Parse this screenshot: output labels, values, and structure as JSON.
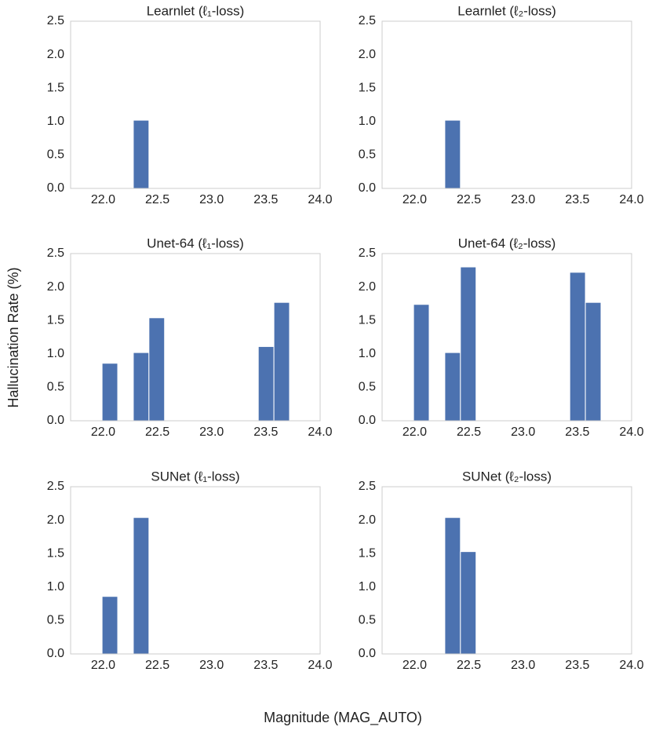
{
  "xlabel": "Magnitude (MAG_AUTO)",
  "ylabel": "Hallucination Rate (%)",
  "chart_data": [
    {
      "type": "histogram",
      "title": "Learnlet (ℓ₁-loss)",
      "color": "#4c72b0",
      "grid": false,
      "bins": [
        21.99,
        22.134,
        22.278,
        22.422,
        22.566,
        22.71,
        22.854,
        22.998,
        23.142,
        23.286,
        23.43,
        23.574,
        23.718
      ],
      "values": [
        0,
        0,
        1.02,
        0,
        0,
        0,
        0,
        0,
        0,
        0,
        0,
        0
      ],
      "xlim": [
        21.7,
        24.0
      ],
      "ylim": [
        0,
        2.5
      ],
      "xticks": [
        {
          "value": 22,
          "label": "22.0"
        },
        22.5,
        {
          "value": 23,
          "label": "23.0"
        },
        23.5,
        {
          "value": 24,
          "label": "24.0"
        }
      ],
      "yticks": [
        {
          "value": 0,
          "label": "0.0"
        },
        0.5,
        {
          "value": 1,
          "label": "1.0"
        },
        1.5,
        {
          "value": 2,
          "label": "2.0"
        },
        2.5
      ]
    },
    {
      "type": "histogram",
      "title": "Learnlet (ℓ₂-loss)",
      "color": "#4c72b0",
      "grid": false,
      "bins": [
        21.99,
        22.134,
        22.278,
        22.422,
        22.566,
        22.71,
        22.854,
        22.998,
        23.142,
        23.286,
        23.43,
        23.574,
        23.718
      ],
      "values": [
        0,
        0,
        1.02,
        0,
        0,
        0,
        0,
        0,
        0,
        0,
        0,
        0
      ],
      "xlim": [
        21.7,
        24.0
      ],
      "ylim": [
        0,
        2.5
      ],
      "xticks": [
        {
          "value": 22,
          "label": "22.0"
        },
        22.5,
        {
          "value": 23,
          "label": "23.0"
        },
        23.5,
        {
          "value": 24,
          "label": "24.0"
        }
      ],
      "yticks": [
        {
          "value": 0,
          "label": "0.0"
        },
        0.5,
        {
          "value": 1,
          "label": "1.0"
        },
        1.5,
        {
          "value": 2,
          "label": "2.0"
        },
        2.5
      ]
    },
    {
      "type": "histogram",
      "title": "Unet-64 (ℓ₁-loss)",
      "color": "#4c72b0",
      "grid": false,
      "bins": [
        21.99,
        22.134,
        22.278,
        22.422,
        22.566,
        22.71,
        22.854,
        22.998,
        23.142,
        23.286,
        23.43,
        23.574,
        23.718
      ],
      "values": [
        0.86,
        0,
        1.02,
        1.54,
        0,
        0,
        0,
        0,
        0,
        0,
        1.11,
        1.77
      ],
      "xlim": [
        21.7,
        24.0
      ],
      "ylim": [
        0,
        2.5
      ],
      "xticks": [
        {
          "value": 22,
          "label": "22.0"
        },
        22.5,
        {
          "value": 23,
          "label": "23.0"
        },
        23.5,
        {
          "value": 24,
          "label": "24.0"
        }
      ],
      "yticks": [
        {
          "value": 0,
          "label": "0.0"
        },
        0.5,
        {
          "value": 1,
          "label": "1.0"
        },
        1.5,
        {
          "value": 2,
          "label": "2.0"
        },
        2.5
      ]
    },
    {
      "type": "histogram",
      "title": "Unet-64 (ℓ₂-loss)",
      "color": "#4c72b0",
      "grid": false,
      "bins": [
        21.99,
        22.134,
        22.278,
        22.422,
        22.566,
        22.71,
        22.854,
        22.998,
        23.142,
        23.286,
        23.43,
        23.574,
        23.718
      ],
      "values": [
        1.74,
        0,
        1.02,
        2.3,
        0,
        0,
        0,
        0,
        0,
        0,
        2.22,
        1.77
      ],
      "xlim": [
        21.7,
        24.0
      ],
      "ylim": [
        0,
        2.5
      ],
      "xticks": [
        {
          "value": 22,
          "label": "22.0"
        },
        22.5,
        {
          "value": 23,
          "label": "23.0"
        },
        23.5,
        {
          "value": 24,
          "label": "24.0"
        }
      ],
      "yticks": [
        {
          "value": 0,
          "label": "0.0"
        },
        0.5,
        {
          "value": 1,
          "label": "1.0"
        },
        1.5,
        {
          "value": 2,
          "label": "2.0"
        },
        2.5
      ]
    },
    {
      "type": "histogram",
      "title": "SUNet (ℓ₁-loss)",
      "color": "#4c72b0",
      "grid": false,
      "bins": [
        21.99,
        22.134,
        22.278,
        22.422,
        22.566,
        22.71,
        22.854,
        22.998,
        23.142,
        23.286,
        23.43,
        23.574,
        23.718
      ],
      "values": [
        0.86,
        0,
        2.04,
        0,
        0,
        0,
        0,
        0,
        0,
        0,
        0,
        0
      ],
      "xlim": [
        21.7,
        24.0
      ],
      "ylim": [
        0,
        2.5
      ],
      "xticks": [
        {
          "value": 22,
          "label": "22.0"
        },
        22.5,
        {
          "value": 23,
          "label": "23.0"
        },
        23.5,
        {
          "value": 24,
          "label": "24.0"
        }
      ],
      "yticks": [
        {
          "value": 0,
          "label": "0.0"
        },
        0.5,
        {
          "value": 1,
          "label": "1.0"
        },
        1.5,
        {
          "value": 2,
          "label": "2.0"
        },
        2.5
      ]
    },
    {
      "type": "histogram",
      "title": "SUNet (ℓ₂-loss)",
      "color": "#4c72b0",
      "grid": false,
      "bins": [
        21.99,
        22.134,
        22.278,
        22.422,
        22.566,
        22.71,
        22.854,
        22.998,
        23.142,
        23.286,
        23.43,
        23.574,
        23.718
      ],
      "values": [
        0,
        0,
        2.04,
        1.53,
        0,
        0,
        0,
        0,
        0,
        0,
        0,
        0
      ],
      "xlim": [
        21.7,
        24.0
      ],
      "ylim": [
        0,
        2.5
      ],
      "xticks": [
        {
          "value": 22,
          "label": "22.0"
        },
        22.5,
        {
          "value": 23,
          "label": "23.0"
        },
        23.5,
        {
          "value": 24,
          "label": "24.0"
        }
      ],
      "yticks": [
        {
          "value": 0,
          "label": "0.0"
        },
        0.5,
        {
          "value": 1,
          "label": "1.0"
        },
        1.5,
        {
          "value": 2,
          "label": "2.0"
        },
        2.5
      ]
    }
  ]
}
